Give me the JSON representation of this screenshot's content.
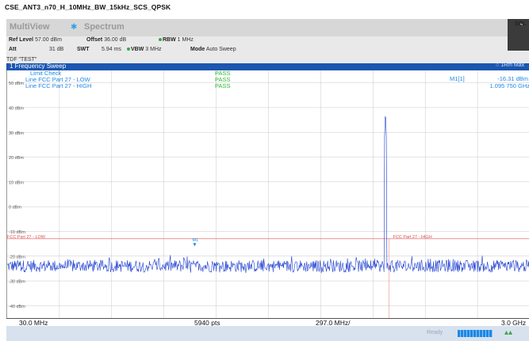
{
  "page_title": "CSE_ANT3_n70_H_10MHz_BW_15kHz_SCS_QPSK",
  "tabs": [
    {
      "label": "MultiView"
    },
    {
      "label": "Spectrum"
    }
  ],
  "sgl_label": "SGL",
  "params": {
    "ref_level_label": "Ref Level",
    "ref_level_value": "57.00 dBm",
    "offset_label": "Offset",
    "offset_value": "36.00 dB",
    "rbw_label": "RBW",
    "rbw_value": "1 MHz",
    "att_label": "Att",
    "att_value": "31 dB",
    "swt_label": "SWT",
    "swt_value": "5.94 ms",
    "vbw_label": "VBW",
    "vbw_value": "3 MHz",
    "mode_label": "Mode",
    "mode_value": "Auto Sweep",
    "tdf": "TDF \"TEST\""
  },
  "diagram": {
    "title": "1 Frequency Sweep",
    "trace_label": "1Rm Max"
  },
  "limit_check": {
    "title": "Limit Check",
    "title_result": "PASS",
    "rows": [
      {
        "name": "Line FCC Part 27 - LOW",
        "result": "PASS"
      },
      {
        "name": "Line FCC Part 27 - HIGH",
        "result": "PASS"
      }
    ]
  },
  "marker": {
    "id": "M1[1]",
    "level": "-16.31 dBm",
    "freq": "1.095 750 GHz",
    "label": "M1"
  },
  "limit_lines": {
    "low_label": "FCC Part 27 - LOW",
    "high_label": "FCC Part 27 - HIGH"
  },
  "xaxis": {
    "start": "30.0 MHz",
    "points": "5940 pts",
    "step": "297.0 MHz/",
    "stop": "3.0 GHz"
  },
  "status": {
    "ready": "Ready"
  },
  "colors": {
    "trace": "#1f3fd0",
    "limit_line": "#e05050",
    "pass": "#2fb82f",
    "marker": "#1e88e5",
    "header_bar": "#1b56b0"
  },
  "chart_data": {
    "type": "line",
    "x_unit": "GHz",
    "y_unit": "dBm",
    "xlim": [
      0.03,
      3.0
    ],
    "ylim": [
      -45,
      55
    ],
    "y_ticks": [
      {
        "value": 50,
        "label": "50 dBm"
      },
      {
        "value": 40,
        "label": "40 dBm"
      },
      {
        "value": 30,
        "label": "30 dBm"
      },
      {
        "value": 20,
        "label": "20 dBm"
      },
      {
        "value": 10,
        "label": "10 dBm"
      },
      {
        "value": 0,
        "label": "0 dBm"
      },
      {
        "value": -10,
        "label": "-10 dBm"
      },
      {
        "value": -20,
        "label": "-20 dBm"
      },
      {
        "value": -30,
        "label": "-30 dBm"
      },
      {
        "value": -40,
        "label": "-40 dBm"
      }
    ],
    "limit_level": -13,
    "limit_low_end": 0.03,
    "limit_high_start": 2.2,
    "noise_floor_mean": -24,
    "noise_floor_spread": 2.5,
    "carrier_center": 2.18,
    "carrier_peak": 37,
    "marker_point": {
      "x": 1.09575,
      "y": -16.31
    },
    "grid": true
  }
}
